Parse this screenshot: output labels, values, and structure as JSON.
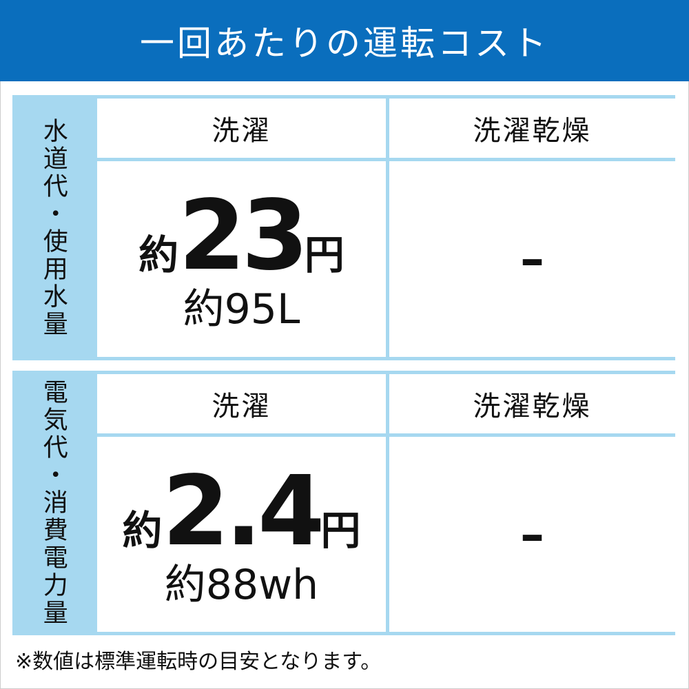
{
  "title": "一回あたりの運転コスト",
  "sections": [
    {
      "label": "水道代・使用水量",
      "columns": [
        "洗濯",
        "洗濯乾燥"
      ],
      "wash": {
        "prefix": "約",
        "value": "23",
        "unit": "円",
        "sub": "約95L"
      },
      "wash_dry": "–"
    },
    {
      "label": "電気代・消費電力量",
      "columns": [
        "洗濯",
        "洗濯乾燥"
      ],
      "wash": {
        "prefix": "約",
        "value": "2.4",
        "unit": "円",
        "sub": "約88wh"
      },
      "wash_dry": "–"
    }
  ],
  "footnote": "※数値は標準運転時の目安となります。",
  "colors": {
    "header": "#0a6ebd",
    "table": "#a6d8f0"
  }
}
